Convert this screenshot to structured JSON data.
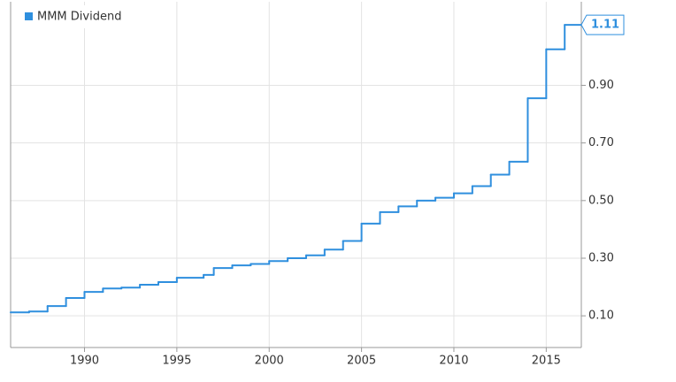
{
  "chart_data": {
    "type": "step",
    "series": [
      {
        "name": "MMM Dividend",
        "color": "#2f8fde",
        "x": [
          1986,
          1987,
          1988,
          1989,
          1990,
          1991,
          1992,
          1993,
          1994,
          1995,
          1996.45,
          1997,
          1998,
          1999,
          2000,
          2001,
          2002,
          2003,
          2004,
          2005,
          2006,
          2007,
          2008,
          2009,
          2010,
          2011,
          2012,
          2013,
          2014,
          2015,
          2016
        ],
        "values": [
          0.112,
          0.115,
          0.134,
          0.162,
          0.183,
          0.195,
          0.198,
          0.208,
          0.217,
          0.232,
          0.242,
          0.266,
          0.275,
          0.28,
          0.29,
          0.3,
          0.31,
          0.33,
          0.36,
          0.42,
          0.46,
          0.48,
          0.5,
          0.51,
          0.525,
          0.55,
          0.59,
          0.635,
          0.855,
          1.025,
          1.11
        ]
      }
    ],
    "xlim": [
      1986,
      2016.9
    ],
    "xticks": [
      1990,
      1995,
      2000,
      2005,
      2010,
      2015
    ],
    "ylim": [
      -0.01,
      1.19
    ],
    "yticks": [
      {
        "value": 0.1,
        "label": "0.10"
      },
      {
        "value": 0.3,
        "label": "0.30"
      },
      {
        "value": 0.5,
        "label": "0.50"
      },
      {
        "value": 0.7,
        "label": "0.70"
      },
      {
        "value": 0.9,
        "label": "0.90"
      }
    ],
    "grid": true,
    "legend": "upper left"
  }
}
